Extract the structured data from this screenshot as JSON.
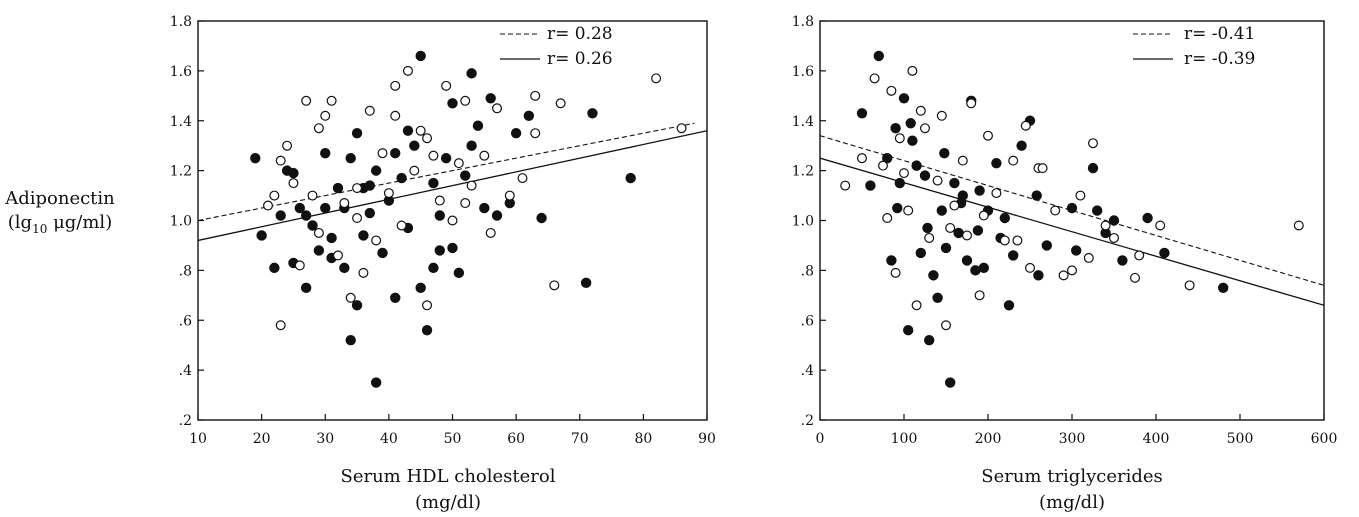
{
  "figure": {
    "shared_ylabel_line1": "Adiponectin",
    "shared_ylabel_line2_prefix": "(lg",
    "shared_ylabel_line2_sub": "10",
    "shared_ylabel_line2_suffix": " μg/ml)"
  },
  "chart_data": [
    {
      "type": "scatter",
      "xlabel_line1": "Serum HDL cholesterol",
      "xlabel_line2": "(mg/dl)",
      "xlim": [
        10,
        90
      ],
      "ylim": [
        0.2,
        1.8
      ],
      "xticks": [
        10,
        20,
        30,
        40,
        50,
        60,
        70,
        80,
        90
      ],
      "xtick_labels": [
        "10",
        "20",
        "30",
        "40",
        "50",
        "60",
        "70",
        "80",
        "90"
      ],
      "yticks": [
        0.2,
        0.4,
        0.6,
        0.8,
        1.0,
        1.2,
        1.4,
        1.6,
        1.8
      ],
      "ytick_labels": [
        ".2",
        ".4",
        ".6",
        ".8",
        "1.0",
        "1.2",
        "1.4",
        "1.6",
        "1.8"
      ],
      "grid": false,
      "legend_position": "top-right",
      "regression_lines": [
        {
          "label": "r= 0.28",
          "style": "dashed",
          "points": [
            [
              10,
              1.0
            ],
            [
              88,
              1.39
            ]
          ]
        },
        {
          "label": "r= 0.26",
          "style": "solid",
          "points": [
            [
              10,
              0.92
            ],
            [
              90,
              1.36
            ]
          ]
        }
      ],
      "series": [
        {
          "marker": "filled",
          "points": [
            [
              19,
              1.25
            ],
            [
              20,
              0.94
            ],
            [
              22,
              0.81
            ],
            [
              23,
              1.02
            ],
            [
              25,
              0.83
            ],
            [
              25,
              1.19
            ],
            [
              26,
              1.05
            ],
            [
              27,
              0.73
            ],
            [
              28,
              0.98
            ],
            [
              29,
              0.88
            ],
            [
              30,
              1.27
            ],
            [
              30,
              1.05
            ],
            [
              31,
              0.93
            ],
            [
              32,
              1.13
            ],
            [
              33,
              0.81
            ],
            [
              33,
              1.05
            ],
            [
              34,
              0.52
            ],
            [
              34,
              1.25
            ],
            [
              35,
              0.66
            ],
            [
              35,
              1.35
            ],
            [
              36,
              0.94
            ],
            [
              36,
              1.13
            ],
            [
              37,
              1.03
            ],
            [
              38,
              0.35
            ],
            [
              38,
              1.2
            ],
            [
              39,
              0.87
            ],
            [
              40,
              1.08
            ],
            [
              41,
              1.27
            ],
            [
              41,
              0.69
            ],
            [
              42,
              1.17
            ],
            [
              43,
              0.97
            ],
            [
              44,
              1.3
            ],
            [
              45,
              1.66
            ],
            [
              45,
              0.73
            ],
            [
              46,
              0.56
            ],
            [
              47,
              0.81
            ],
            [
              47,
              1.15
            ],
            [
              48,
              1.02
            ],
            [
              49,
              1.25
            ],
            [
              50,
              0.89
            ],
            [
              50,
              1.47
            ],
            [
              51,
              0.79
            ],
            [
              52,
              1.18
            ],
            [
              53,
              1.59
            ],
            [
              54,
              1.38
            ],
            [
              55,
              1.05
            ],
            [
              56,
              1.49
            ],
            [
              57,
              1.02
            ],
            [
              59,
              1.07
            ],
            [
              60,
              1.35
            ],
            [
              62,
              1.42
            ],
            [
              64,
              1.01
            ],
            [
              71,
              0.75
            ],
            [
              72,
              1.43
            ],
            [
              78,
              1.17
            ],
            [
              24,
              1.2
            ],
            [
              27,
              1.02
            ],
            [
              31,
              0.85
            ],
            [
              37,
              1.14
            ],
            [
              43,
              1.36
            ],
            [
              48,
              0.88
            ],
            [
              53,
              1.3
            ]
          ]
        },
        {
          "marker": "open",
          "points": [
            [
              21,
              1.06
            ],
            [
              22,
              1.1
            ],
            [
              23,
              1.24
            ],
            [
              24,
              1.3
            ],
            [
              25,
              1.15
            ],
            [
              26,
              0.82
            ],
            [
              27,
              1.48
            ],
            [
              28,
              1.1
            ],
            [
              29,
              1.37
            ],
            [
              30,
              1.42
            ],
            [
              31,
              1.48
            ],
            [
              32,
              0.86
            ],
            [
              33,
              1.07
            ],
            [
              34,
              0.69
            ],
            [
              35,
              1.13
            ],
            [
              36,
              0.79
            ],
            [
              37,
              1.44
            ],
            [
              38,
              0.92
            ],
            [
              39,
              1.27
            ],
            [
              40,
              1.11
            ],
            [
              41,
              1.54
            ],
            [
              42,
              0.98
            ],
            [
              43,
              1.6
            ],
            [
              44,
              1.2
            ],
            [
              45,
              1.36
            ],
            [
              46,
              0.66
            ],
            [
              47,
              1.26
            ],
            [
              48,
              1.08
            ],
            [
              49,
              1.54
            ],
            [
              50,
              1.0
            ],
            [
              51,
              1.23
            ],
            [
              52,
              1.48
            ],
            [
              53,
              1.14
            ],
            [
              55,
              1.26
            ],
            [
              56,
              0.95
            ],
            [
              57,
              1.45
            ],
            [
              59,
              1.1
            ],
            [
              61,
              1.17
            ],
            [
              63,
              1.5
            ],
            [
              66,
              0.74
            ],
            [
              67,
              1.47
            ],
            [
              82,
              1.57
            ],
            [
              86,
              1.37
            ],
            [
              23,
              0.58
            ],
            [
              29,
              0.95
            ],
            [
              35,
              1.01
            ],
            [
              41,
              1.42
            ],
            [
              46,
              1.33
            ],
            [
              52,
              1.07
            ],
            [
              63,
              1.35
            ]
          ]
        }
      ]
    },
    {
      "type": "scatter",
      "xlabel_line1": "Serum triglycerides",
      "xlabel_line2": "(mg/dl)",
      "xlim": [
        0,
        600
      ],
      "ylim": [
        0.2,
        1.8
      ],
      "xticks": [
        0,
        100,
        200,
        300,
        400,
        500,
        600
      ],
      "xtick_labels": [
        "0",
        "100",
        "200",
        "300",
        "400",
        "500",
        "600"
      ],
      "yticks": [
        0.2,
        0.4,
        0.6,
        0.8,
        1.0,
        1.2,
        1.4,
        1.6,
        1.8
      ],
      "ytick_labels": [
        ".2",
        ".4",
        ".6",
        ".8",
        "1.0",
        "1.2",
        "1.4",
        "1.6",
        "1.8"
      ],
      "grid": false,
      "legend_position": "top-right",
      "regression_lines": [
        {
          "label": "r= -0.41",
          "style": "dashed",
          "points": [
            [
              0,
              1.34
            ],
            [
              600,
              0.74
            ]
          ]
        },
        {
          "label": "r= -0.39",
          "style": "solid",
          "points": [
            [
              0,
              1.25
            ],
            [
              600,
              0.66
            ]
          ]
        }
      ],
      "series": [
        {
          "marker": "filled",
          "points": [
            [
              50,
              1.43
            ],
            [
              60,
              1.14
            ],
            [
              70,
              1.66
            ],
            [
              80,
              1.25
            ],
            [
              85,
              0.84
            ],
            [
              90,
              1.37
            ],
            [
              95,
              1.15
            ],
            [
              100,
              1.49
            ],
            [
              105,
              0.56
            ],
            [
              110,
              1.32
            ],
            [
              115,
              1.22
            ],
            [
              120,
              0.87
            ],
            [
              125,
              1.18
            ],
            [
              130,
              0.52
            ],
            [
              135,
              0.78
            ],
            [
              140,
              0.69
            ],
            [
              145,
              1.04
            ],
            [
              150,
              0.89
            ],
            [
              155,
              0.35
            ],
            [
              160,
              1.15
            ],
            [
              165,
              0.95
            ],
            [
              170,
              1.1
            ],
            [
              175,
              0.84
            ],
            [
              180,
              1.48
            ],
            [
              185,
              0.8
            ],
            [
              190,
              1.12
            ],
            [
              195,
              0.81
            ],
            [
              200,
              1.04
            ],
            [
              210,
              1.23
            ],
            [
              220,
              1.01
            ],
            [
              225,
              0.66
            ],
            [
              230,
              0.86
            ],
            [
              240,
              1.3
            ],
            [
              250,
              1.4
            ],
            [
              260,
              0.78
            ],
            [
              270,
              0.9
            ],
            [
              300,
              1.05
            ],
            [
              325,
              1.21
            ],
            [
              330,
              1.04
            ],
            [
              350,
              1.0
            ],
            [
              360,
              0.84
            ],
            [
              390,
              1.01
            ],
            [
              410,
              0.87
            ],
            [
              480,
              0.73
            ],
            [
              92,
              1.05
            ],
            [
              108,
              1.39
            ],
            [
              128,
              0.97
            ],
            [
              148,
              1.27
            ],
            [
              168,
              1.07
            ],
            [
              188,
              0.96
            ],
            [
              215,
              0.93
            ],
            [
              258,
              1.1
            ],
            [
              305,
              0.88
            ],
            [
              340,
              0.95
            ]
          ]
        },
        {
          "marker": "open",
          "points": [
            [
              30,
              1.14
            ],
            [
              50,
              1.25
            ],
            [
              65,
              1.57
            ],
            [
              75,
              1.22
            ],
            [
              80,
              1.01
            ],
            [
              85,
              1.52
            ],
            [
              90,
              0.79
            ],
            [
              95,
              1.33
            ],
            [
              100,
              1.19
            ],
            [
              110,
              1.6
            ],
            [
              115,
              0.66
            ],
            [
              120,
              1.44
            ],
            [
              130,
              0.93
            ],
            [
              140,
              1.16
            ],
            [
              145,
              1.42
            ],
            [
              150,
              0.58
            ],
            [
              160,
              1.06
            ],
            [
              170,
              1.24
            ],
            [
              175,
              0.94
            ],
            [
              180,
              1.47
            ],
            [
              190,
              0.7
            ],
            [
              200,
              1.34
            ],
            [
              210,
              1.11
            ],
            [
              220,
              0.92
            ],
            [
              230,
              1.24
            ],
            [
              245,
              1.38
            ],
            [
              250,
              0.81
            ],
            [
              260,
              1.21
            ],
            [
              280,
              1.04
            ],
            [
              290,
              0.78
            ],
            [
              310,
              1.1
            ],
            [
              320,
              0.85
            ],
            [
              325,
              1.31
            ],
            [
              340,
              0.98
            ],
            [
              375,
              0.77
            ],
            [
              380,
              0.86
            ],
            [
              405,
              0.98
            ],
            [
              440,
              0.74
            ],
            [
              570,
              0.98
            ],
            [
              105,
              1.04
            ],
            [
              125,
              1.37
            ],
            [
              155,
              0.97
            ],
            [
              195,
              1.02
            ],
            [
              235,
              0.92
            ],
            [
              265,
              1.21
            ],
            [
              300,
              0.8
            ],
            [
              350,
              0.93
            ]
          ]
        }
      ]
    }
  ]
}
